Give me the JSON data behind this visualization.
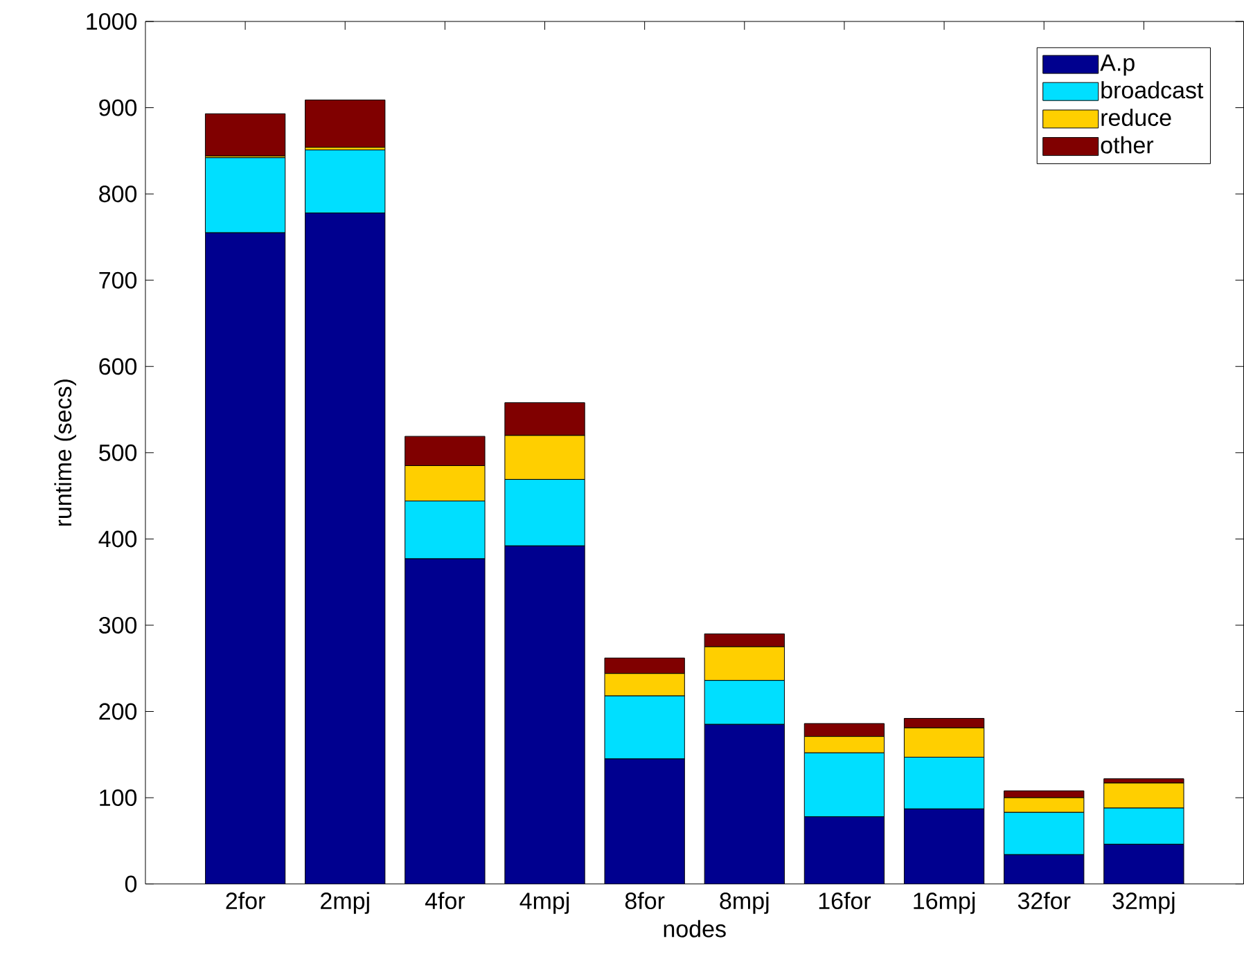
{
  "chart_data": {
    "type": "bar",
    "stacked": true,
    "xlabel": "nodes",
    "ylabel": "runtime (secs)",
    "categories": [
      "2for",
      "2mpj",
      "4for",
      "4mpj",
      "8for",
      "8mpj",
      "16for",
      "16mpj",
      "32for",
      "32mpj"
    ],
    "series": [
      {
        "name": "A.p",
        "color": "#00008f",
        "values": [
          755,
          778,
          377,
          392,
          145,
          185,
          78,
          87,
          34,
          46
        ]
      },
      {
        "name": "broadcast",
        "color": "#00dfff",
        "values": [
          87,
          73,
          67,
          77,
          73,
          51,
          74,
          60,
          49,
          42
        ]
      },
      {
        "name": "reduce",
        "color": "#ffcf00",
        "values": [
          2,
          3,
          41,
          51,
          26,
          39,
          19,
          34,
          17,
          29
        ]
      },
      {
        "name": "other",
        "color": "#800000",
        "values": [
          49,
          55,
          34,
          38,
          18,
          15,
          15,
          11,
          8,
          5
        ]
      }
    ],
    "ylim": [
      0,
      1000
    ],
    "yticks": [
      0,
      100,
      200,
      300,
      400,
      500,
      600,
      700,
      800,
      900,
      1000
    ],
    "legend": "top right"
  }
}
